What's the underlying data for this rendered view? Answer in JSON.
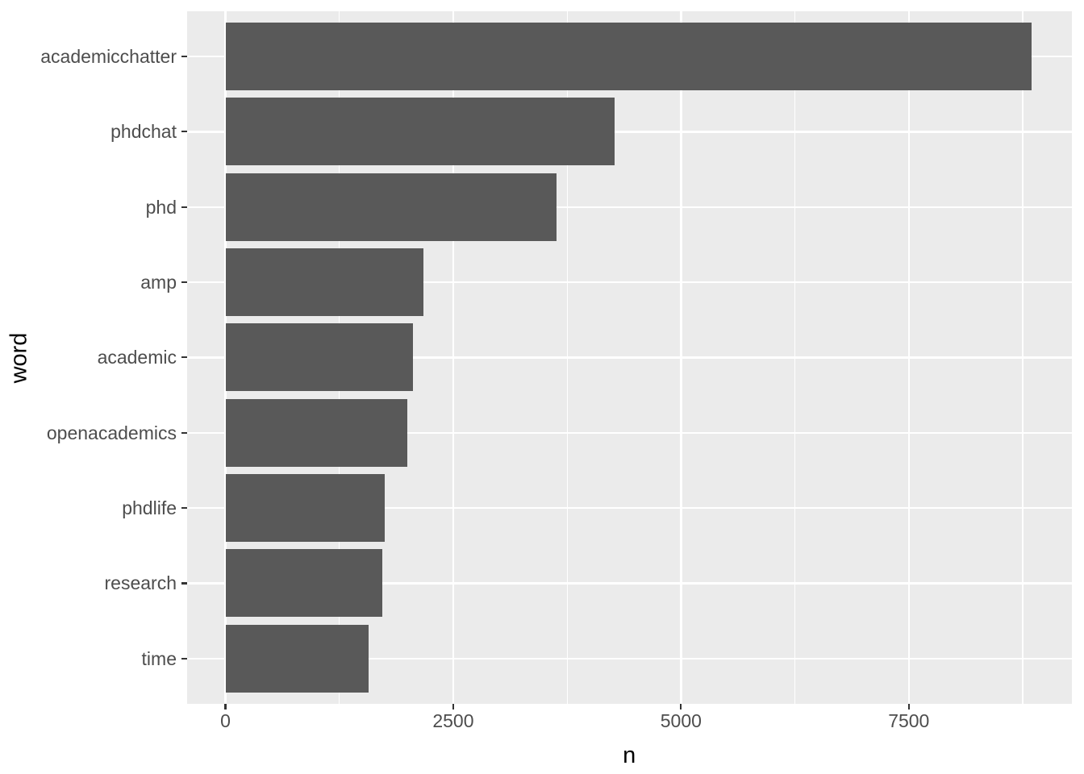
{
  "chart_data": {
    "type": "bar",
    "orientation": "horizontal",
    "xlabel": "n",
    "ylabel": "word",
    "categories": [
      "academicchatter",
      "phdchat",
      "phd",
      "amp",
      "academic",
      "openacademics",
      "phdlife",
      "research",
      "time"
    ],
    "values": [
      8850,
      4270,
      3630,
      2170,
      2060,
      2000,
      1745,
      1720,
      1570
    ],
    "x_major_ticks": [
      0,
      2500,
      5000,
      7500
    ],
    "x_tick_labels": [
      "0",
      "2500",
      "5000",
      "7500"
    ],
    "x_minor_ticks": [
      1250,
      3750,
      6250,
      8750
    ],
    "xlim": [
      -425,
      9290
    ],
    "grid": "major-and-minor, white on grey panel",
    "legend": "none",
    "colors": {
      "bar_fill": "#595959",
      "panel_background": "#EBEBEB",
      "gridline": "#FFFFFF",
      "tick_label": "#4D4D4D",
      "axis_title": "#000000",
      "tick_mark": "#333333",
      "figure_background": "#FFFFFF"
    }
  }
}
